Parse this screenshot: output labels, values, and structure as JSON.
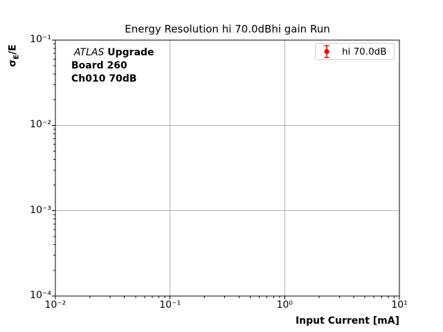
{
  "chart_data": {
    "type": "scatter",
    "title": "Energy Resolution hi 70.0dBhi gain Run",
    "xlabel": "Input Current [mA]",
    "ylabel": "σ_E/E",
    "xscale": "log",
    "yscale": "log",
    "xlim": [
      0.01,
      10
    ],
    "ylim": [
      0.0001,
      0.1
    ],
    "xticklabels": [
      "10⁻²",
      "10⁻¹",
      "10⁰",
      "10¹"
    ],
    "yticklabels": [
      "10⁻¹",
      "10⁻²",
      "10⁻³",
      "10⁻⁴"
    ],
    "grid": true,
    "legend_position": "upper right",
    "series": [
      {
        "name": "hi 70.0dB",
        "color": "#ff0000",
        "marker": "circle-with-errorbars",
        "x": [],
        "y": []
      }
    ],
    "annotation_lines": [
      "ATLAS Upgrade",
      "Board 260",
      "Ch010 70dB"
    ],
    "colors": {
      "grid": "#b0b0b0",
      "spine": "#000000",
      "series": "#ff0000",
      "legend_border": "#cccccc"
    }
  },
  "ylabel_parts": {
    "sigma": "σ",
    "sub": "E",
    "rest": "/E"
  },
  "annotation": {
    "line1_italic": "ATLAS",
    "line1_bold": "Upgrade",
    "line2": "Board 260",
    "line3": "Ch010 70dB"
  },
  "legend": {
    "entries": [
      {
        "label": "hi 70.0dB",
        "color": "#ff0000",
        "marker": "errorbar-circle-icon"
      }
    ]
  }
}
